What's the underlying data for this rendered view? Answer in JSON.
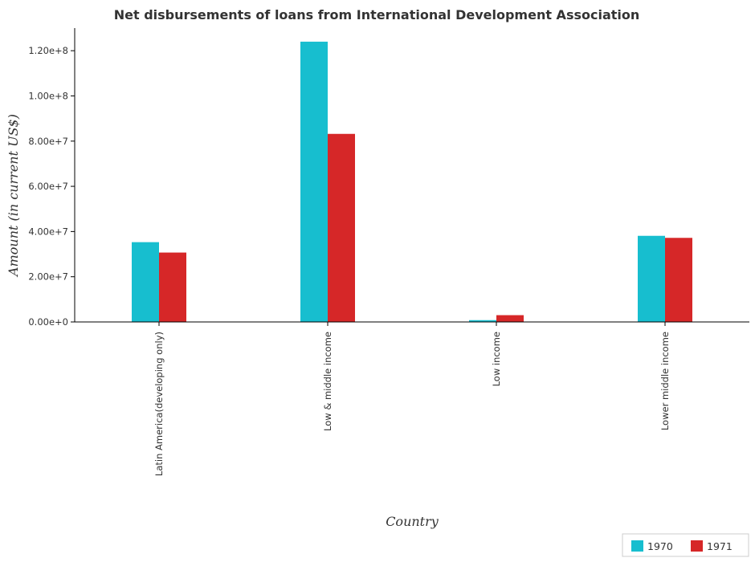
{
  "chart_data": {
    "type": "bar",
    "title": "Net disbursements of loans from International Development Association",
    "xlabel": "Country",
    "ylabel": "Amount (in current US$)",
    "categories": [
      "Latin America(developing only)",
      "Low & middle income",
      "Low income",
      "Lower middle income"
    ],
    "series": [
      {
        "name": "1970",
        "color": "#17becf",
        "values": [
          35300000,
          124000000,
          800000,
          38100000
        ]
      },
      {
        "name": "1971",
        "color": "#d62728",
        "values": [
          30700000,
          83200000,
          3000000,
          37200000
        ]
      }
    ],
    "yticks": [
      0,
      20000000,
      40000000,
      60000000,
      80000000,
      100000000,
      120000000
    ],
    "ytick_labels": [
      "0.00e+0",
      "2.00e+7",
      "4.00e+7",
      "6.00e+7",
      "8.00e+7",
      "1.00e+8",
      "1.20e+8"
    ],
    "ylim": [
      0,
      130000000
    ],
    "legend_position": "bottom-right",
    "grid": false
  }
}
